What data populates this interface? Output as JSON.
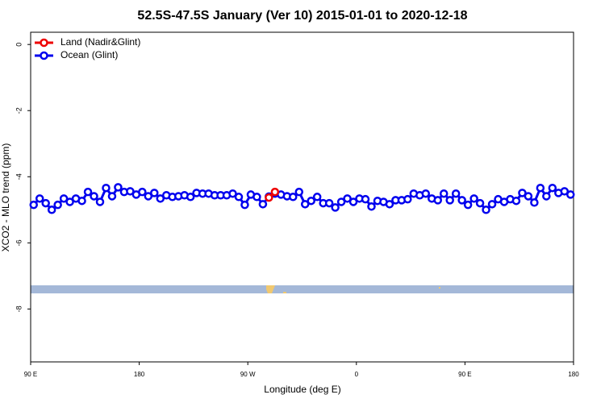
{
  "chart_data": {
    "type": "line",
    "title": "52.5S-47.5S January (Ver 10)   2015-01-01 to 2020-12-18",
    "x_label": "Longitude (deg E)",
    "y_label": "XCO2 - MLO trend (ppm)",
    "xlim": [
      90,
      540
    ],
    "xticks": [
      {
        "value": 90,
        "label": "90 E"
      },
      180,
      {
        "value": 270,
        "label": "90 W"
      },
      {
        "value": 360,
        "label": "0"
      },
      {
        "value": 450,
        "label": "90 E"
      },
      {
        "value": 540,
        "label": "180"
      }
    ],
    "ylim": [
      -9.6,
      0.37
    ],
    "yticks": [
      0,
      -2,
      -4,
      -6,
      -8
    ],
    "legend": "top-left",
    "series": [
      {
        "name": "Land (Nadir&Glint)",
        "color": "#ee0000",
        "x": [
          287.5,
          292.5
        ],
        "values": [
          -4.63,
          -4.46
        ]
      },
      {
        "name": "Ocean (Glint)",
        "color": "#0000ee",
        "x": [
          92.5,
          97.5,
          102.5,
          107.5,
          112.5,
          117.5,
          122.5,
          127.5,
          132.5,
          137.5,
          142.5,
          147.5,
          152.5,
          157.5,
          162.5,
          167.5,
          172.5,
          177.5,
          182.5,
          187.5,
          192.5,
          197.5,
          202.5,
          207.5,
          212.5,
          217.5,
          222.5,
          227.5,
          232.5,
          237.5,
          242.5,
          247.5,
          252.5,
          257.5,
          262.5,
          267.5,
          272.5,
          277.5,
          282.5,
          287.5,
          292.5,
          297.5,
          302.5,
          307.5,
          312.5,
          317.5,
          322.5,
          327.5,
          332.5,
          337.5,
          342.5,
          347.5,
          352.5,
          357.5,
          362.5,
          367.5,
          372.5,
          377.5,
          382.5,
          387.5,
          392.5,
          397.5,
          402.5,
          407.5,
          412.5,
          417.5,
          422.5,
          427.5,
          432.5,
          437.5,
          442.5,
          447.5,
          452.5,
          457.5,
          462.5,
          467.5,
          472.5,
          477.5,
          482.5,
          487.5,
          492.5,
          497.5,
          502.5,
          507.5,
          512.5,
          517.5,
          522.5,
          527.5,
          532.5,
          537.5
        ],
        "values": [
          -4.85,
          -4.66,
          -4.8,
          -5.0,
          -4.85,
          -4.66,
          -4.76,
          -4.66,
          -4.73,
          -4.46,
          -4.59,
          -4.76,
          -4.34,
          -4.59,
          -4.32,
          -4.46,
          -4.44,
          -4.54,
          -4.46,
          -4.59,
          -4.49,
          -4.66,
          -4.56,
          -4.61,
          -4.59,
          -4.56,
          -4.61,
          -4.49,
          -4.51,
          -4.51,
          -4.56,
          -4.56,
          -4.56,
          -4.51,
          -4.61,
          -4.85,
          -4.54,
          -4.61,
          -4.83,
          -4.6,
          -4.51,
          -4.54,
          -4.59,
          -4.61,
          -4.46,
          -4.83,
          -4.73,
          -4.61,
          -4.8,
          -4.8,
          -4.93,
          -4.76,
          -4.66,
          -4.76,
          -4.66,
          -4.68,
          -4.9,
          -4.73,
          -4.76,
          -4.83,
          -4.71,
          -4.71,
          -4.68,
          -4.51,
          -4.56,
          -4.51,
          -4.66,
          -4.71,
          -4.51,
          -4.71,
          -4.51,
          -4.71,
          -4.85,
          -4.66,
          -4.8,
          -5.0,
          -4.83,
          -4.68,
          -4.76,
          -4.68,
          -4.73,
          -4.49,
          -4.59,
          -4.78,
          -4.34,
          -4.59,
          -4.34,
          -4.49,
          -4.44,
          -4.54
        ]
      }
    ]
  }
}
